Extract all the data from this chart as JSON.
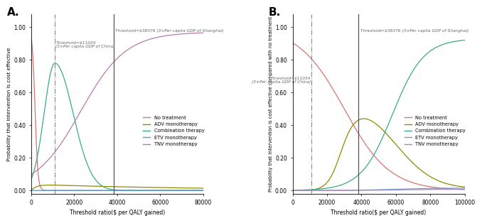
{
  "panel_A": {
    "title": "A.",
    "xlabel": "Threshold ratio($ per QALY gained)",
    "ylabel": "Probability that intervention is cost effective",
    "xlim": [
      0,
      80000
    ],
    "ylim": [
      -0.02,
      1.08
    ],
    "threshold1": 11034,
    "threshold2": 38376,
    "threshold1_label": "Threshold=$11034\n(3×Per capita GDP of China)",
    "threshold2_label": "Threshold=$38376 (3×Per capita GDP of Shanghai)",
    "xticks": [
      0,
      20000,
      40000,
      60000,
      80000
    ],
    "xtick_labels": [
      "0",
      "20000",
      "40000",
      "60000",
      "80000"
    ],
    "yticks": [
      0.0,
      0.2,
      0.4,
      0.6,
      0.8,
      1.0
    ],
    "ytick_labels": [
      "0.00",
      "0.20",
      "0.40",
      "0.60",
      "0.80",
      "1.00"
    ],
    "series": {
      "no_treatment": {
        "color": "#d4756e",
        "label": "No treatment"
      },
      "adv": {
        "color": "#8c8c00",
        "label": "ADV monotherapy"
      },
      "combination": {
        "color": "#3aaa88",
        "label": "Combination therapy"
      },
      "etv": {
        "color": "#5599cc",
        "label": "ETV monotherapy"
      },
      "tnv": {
        "color": "#b87aaa",
        "label": "TNV monotherapy"
      }
    }
  },
  "panel_B": {
    "title": "B.",
    "xlabel": "Threshold ratio($ per QALY gained)",
    "ylabel": "Probability that intervention is cost effective compared with no treatment",
    "xlim": [
      0,
      100000
    ],
    "ylim": [
      -0.02,
      1.08
    ],
    "threshold1": 11034,
    "threshold2": 38376,
    "threshold1_label": "Threshold=$11034\n(3×Per capita GDP of China)",
    "threshold2_label": "Threshold=$38376 (3×Per capita GDP of Shanghai)",
    "xticks": [
      0,
      20000,
      40000,
      60000,
      80000,
      100000
    ],
    "xtick_labels": [
      "0",
      "20000",
      "40000",
      "60000",
      "80000",
      "100000"
    ],
    "yticks": [
      0.0,
      0.2,
      0.4,
      0.6,
      0.8,
      1.0
    ],
    "ytick_labels": [
      "0.00",
      "0.20",
      "0.40",
      "0.60",
      "0.80",
      "1.00"
    ],
    "series": {
      "no_treatment": {
        "color": "#d4756e",
        "label": "No treatment"
      },
      "adv": {
        "color": "#8c8c00",
        "label": "ADV monotherapy"
      },
      "combination": {
        "color": "#3aaa88",
        "label": "Combination therapy"
      },
      "etv": {
        "color": "#7799cc",
        "label": "ETV monotherapy"
      },
      "tnv": {
        "color": "#aa88bb",
        "label": "TNV monotherapy"
      }
    }
  }
}
